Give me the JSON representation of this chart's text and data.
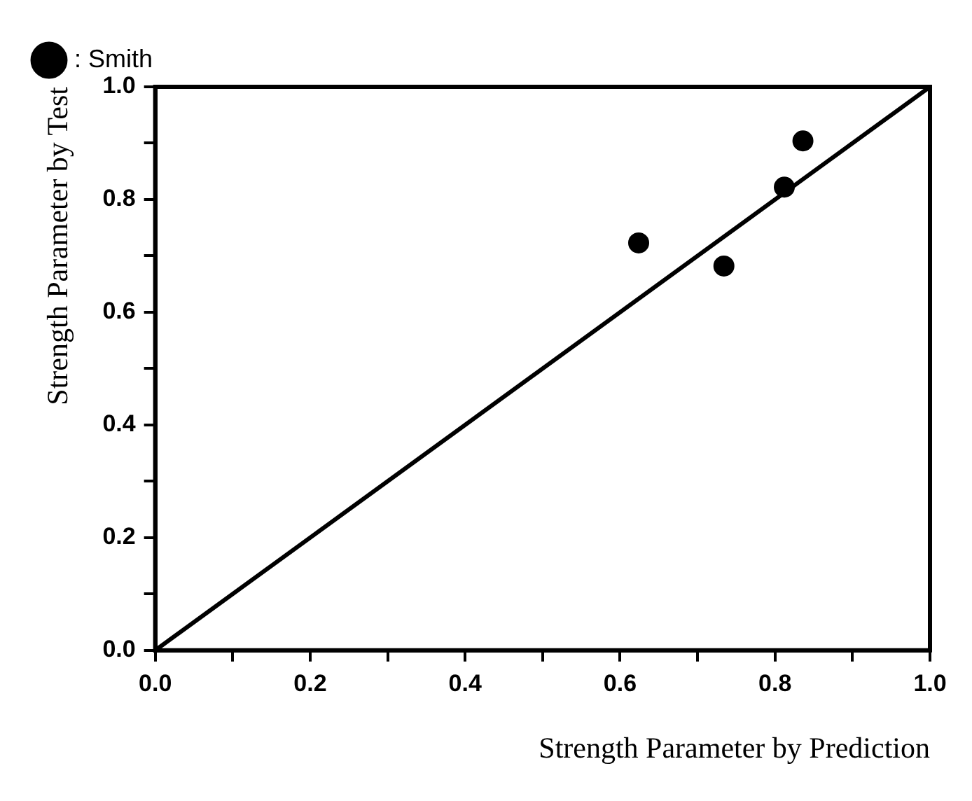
{
  "chart_data": {
    "type": "scatter",
    "xlabel": "Strength Parameter by Prediction",
    "ylabel": "Strength Parameter by Test",
    "xlim": [
      0,
      1
    ],
    "ylim": [
      0,
      1
    ],
    "xticks": [
      {
        "value": 0,
        "label": "0.0"
      },
      {
        "value": 0.1,
        "label": null
      },
      {
        "value": 0.2,
        "label": "0.2"
      },
      {
        "value": 0.3,
        "label": null
      },
      {
        "value": 0.4,
        "label": "0.4"
      },
      {
        "value": 0.5,
        "label": null
      },
      {
        "value": 0.6,
        "label": "0.6"
      },
      {
        "value": 0.7,
        "label": null
      },
      {
        "value": 0.8,
        "label": "0.8"
      },
      {
        "value": 0.9,
        "label": null
      },
      {
        "value": 1,
        "label": "1.0"
      }
    ],
    "yticks": [
      {
        "value": 0,
        "label": "0.0"
      },
      {
        "value": 0.1,
        "label": null
      },
      {
        "value": 0.2,
        "label": "0.2"
      },
      {
        "value": 0.3,
        "label": null
      },
      {
        "value": 0.4,
        "label": "0.4"
      },
      {
        "value": 0.5,
        "label": null
      },
      {
        "value": 0.6,
        "label": "0.6"
      },
      {
        "value": 0.7,
        "label": null
      },
      {
        "value": 0.8,
        "label": "0.8"
      },
      {
        "value": 0.9,
        "label": null
      },
      {
        "value": 1,
        "label": "1.0"
      }
    ],
    "grid": false,
    "legend": "top left",
    "marker": "circle",
    "series": [
      {
        "name": ": Smith",
        "color": "#000000",
        "x": [
          0.624,
          0.734,
          0.812,
          0.836
        ],
        "values": [
          0.723,
          0.682,
          0.822,
          0.904
        ]
      },
      {
        "type": "line",
        "color": "#000000",
        "x": [
          0,
          1
        ],
        "values": [
          0,
          1
        ],
        "marker": "none",
        "line_style": "solid"
      }
    ]
  }
}
